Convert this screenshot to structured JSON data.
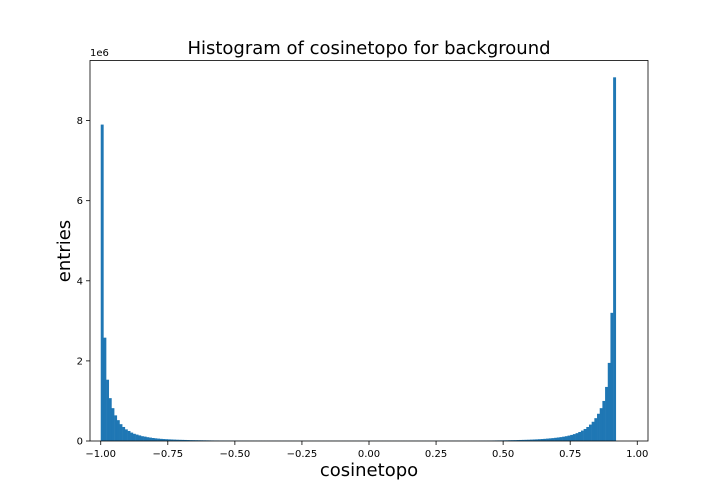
{
  "chart_data": {
    "type": "bar",
    "title": "Histogram of cosinetopo for background",
    "xlabel": "cosinetopo",
    "ylabel": "entries",
    "y_offset_label": "1e6",
    "xlim": [
      -1.04,
      1.04
    ],
    "ylim": [
      0,
      9500000
    ],
    "xticks": [
      -1.0,
      -0.75,
      -0.5,
      -0.25,
      0.0,
      0.25,
      0.5,
      0.75,
      1.0
    ],
    "xtick_labels": [
      "−1.00",
      "−0.75",
      "−0.50",
      "−0.25",
      "0.00",
      "0.25",
      "0.50",
      "0.75",
      "1.00"
    ],
    "yticks": [
      0,
      2000000,
      4000000,
      6000000,
      8000000
    ],
    "ytick_labels": [
      "0",
      "2",
      "4",
      "6",
      "8"
    ],
    "bar_color": "#1f77b4",
    "grid": false,
    "bins": {
      "start": -1.0,
      "end": 1.0,
      "count": 200
    },
    "values": [
      7900000,
      2580000,
      1530000,
      1070000,
      820000,
      640000,
      520000,
      420000,
      350000,
      290000,
      250000,
      210000,
      180000,
      160000,
      140000,
      120000,
      110000,
      95000,
      85000,
      75000,
      67000,
      60000,
      54000,
      49000,
      45000,
      41000,
      38000,
      35000,
      32000,
      30000,
      28000,
      26000,
      24000,
      22000,
      21000,
      20000,
      19000,
      18000,
      17000,
      16000,
      15000,
      14000,
      13000,
      13000,
      12000,
      12000,
      11000,
      11000,
      10000,
      10000,
      9500,
      9000,
      8500,
      8000,
      8000,
      7500,
      7500,
      7000,
      7000,
      7000,
      6500,
      6500,
      6500,
      6000,
      6000,
      6000,
      6000,
      5500,
      5500,
      5500,
      5500,
      5000,
      5000,
      5000,
      5000,
      5000,
      5000,
      5000,
      5000,
      5000,
      5000,
      5000,
      5000,
      5000,
      5000,
      5000,
      5000,
      5000,
      5000,
      5000,
      5000,
      5000,
      5000,
      5000,
      5000,
      5000,
      5000,
      5000,
      5000,
      5000,
      5000,
      5000,
      5000,
      5000,
      5000,
      5000,
      5000,
      5000,
      5000,
      5000,
      5000,
      5000,
      5000,
      5000,
      5000,
      5000,
      5000,
      5000,
      5000,
      5000,
      5000,
      5000,
      5000,
      5000,
      5000,
      5000,
      5500,
      5500,
      5500,
      5500,
      6000,
      6000,
      6000,
      6500,
      6500,
      6500,
      7000,
      7000,
      7500,
      8000,
      8500,
      9000,
      9500,
      10000,
      11000,
      12000,
      13000,
      14000,
      15000,
      16000,
      17000,
      18000,
      20000,
      21000,
      22000,
      24000,
      26000,
      28000,
      30000,
      32000,
      35000,
      38000,
      41000,
      45000,
      49000,
      54000,
      60000,
      66000,
      72000,
      80000,
      88000,
      97000,
      108000,
      120000,
      135000,
      152000,
      172000,
      196000,
      225000,
      260000,
      300000,
      350000,
      410000,
      480000,
      570000,
      680000,
      820000,
      1000000,
      1350000,
      1950000,
      3200000,
      9080000
    ]
  }
}
